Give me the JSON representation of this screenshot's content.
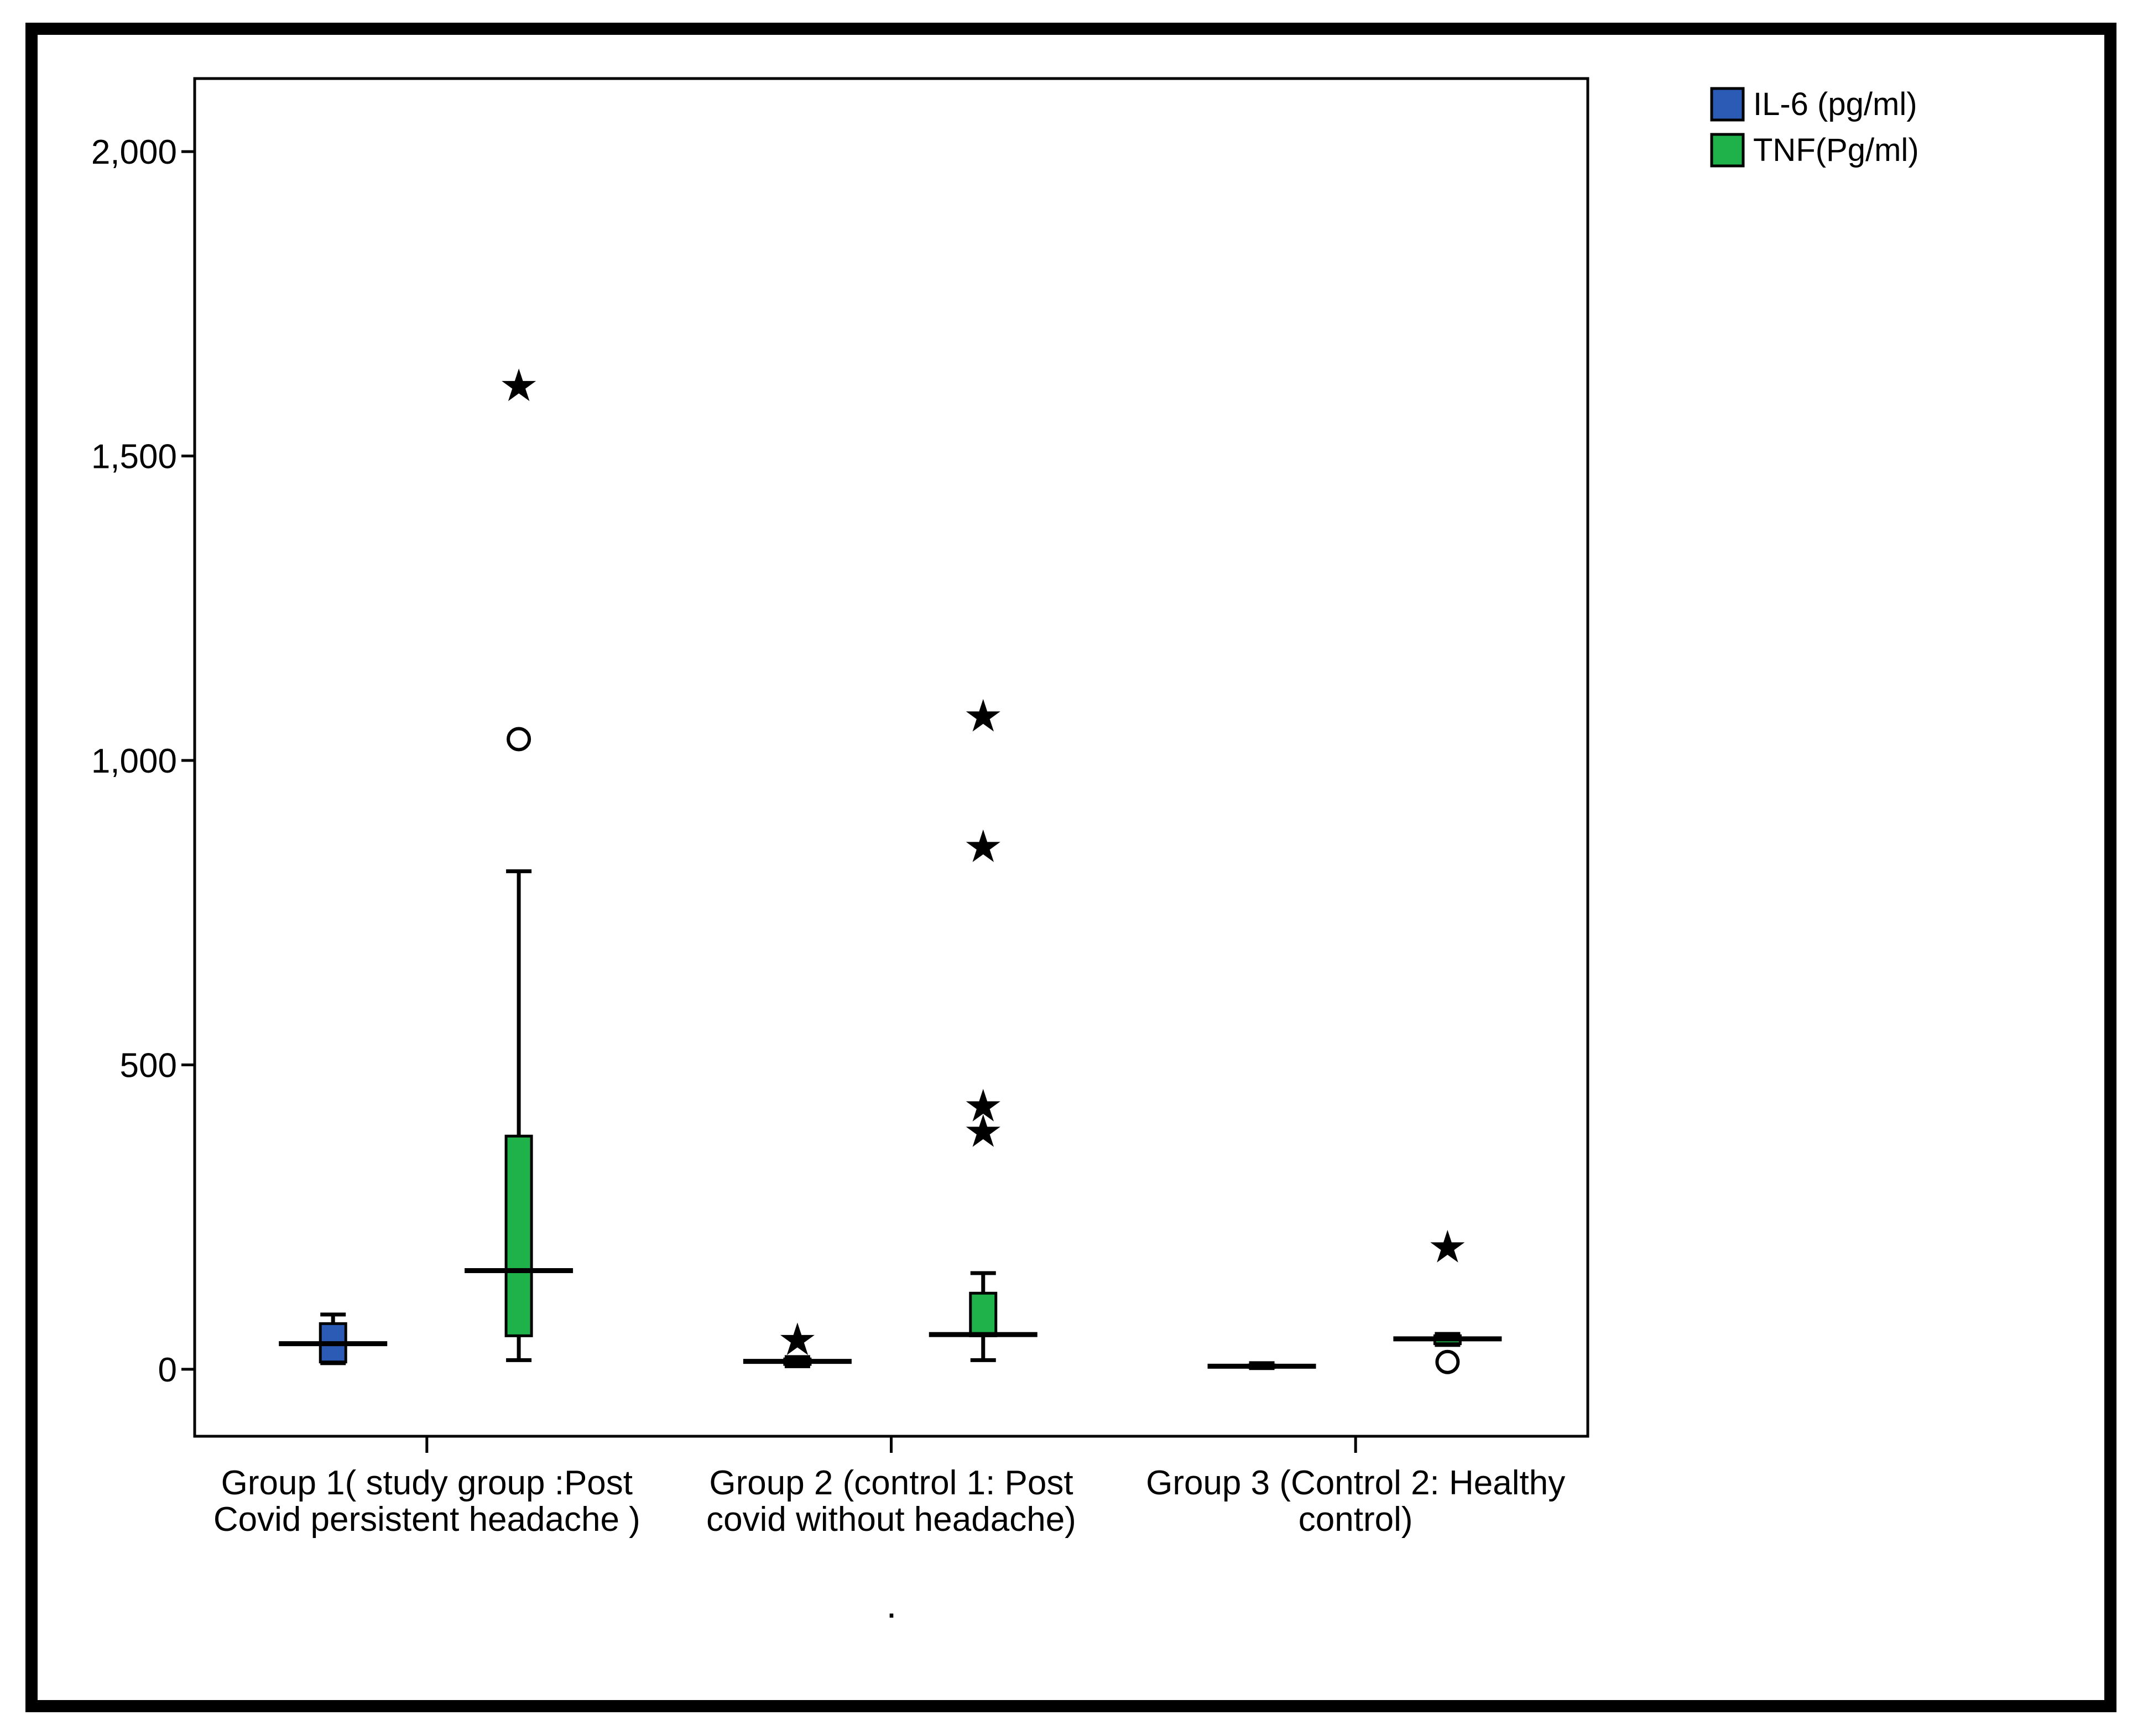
{
  "chart_data": {
    "type": "boxplot",
    "title": "",
    "xlabel": "",
    "ylabel": "",
    "ylim": [
      -110,
      2120
    ],
    "y_ticks": [
      0,
      500,
      1000,
      1500,
      2000
    ],
    "y_tick_labels": [
      "0",
      "500",
      "1,000",
      "1,500",
      "2,000"
    ],
    "grid": false,
    "legend_position": "top-right, outside plot",
    "categories": [
      {
        "line1": "Group 1( study group :Post",
        "line2": "Covid persistent headache )"
      },
      {
        "line1": "Group 2 (control 1: Post",
        "line2": "covid without headache)"
      },
      {
        "line1": "Group 3 (Control 2: Healthy",
        "line2": "control)"
      }
    ],
    "series": [
      {
        "name": "IL-6 (pg/ml)",
        "color": "#2b5bb5",
        "boxes": [
          {
            "whisker_low": 10,
            "q1": 12,
            "median": 42,
            "q3": 75,
            "whisker_high": 90,
            "outliers": [],
            "extremes": []
          },
          {
            "whisker_low": 5,
            "q1": 8,
            "median": 13,
            "q3": 17,
            "whisker_high": 20,
            "outliers": [],
            "extremes": [
              48
            ]
          },
          {
            "whisker_low": 2,
            "q1": 3,
            "median": 5,
            "q3": 7,
            "whisker_high": 10,
            "outliers": [],
            "extremes": []
          }
        ]
      },
      {
        "name": "TNF(Pg/ml)",
        "color": "#1fb14a",
        "boxes": [
          {
            "whisker_low": 15,
            "q1": 55,
            "median": 162,
            "q3": 383,
            "whisker_high": 818,
            "outliers": [
              1035
            ],
            "extremes": [
              1615
            ]
          },
          {
            "whisker_low": 15,
            "q1": 55,
            "median": 57,
            "q3": 125,
            "whisker_high": 158,
            "outliers": [],
            "extremes": [
              390,
              432,
              858,
              1072
            ]
          },
          {
            "whisker_low": 40,
            "q1": 42,
            "median": 50,
            "q3": 55,
            "whisker_high": 58,
            "outliers": [
              12
            ],
            "extremes": [
              200
            ]
          }
        ]
      }
    ]
  },
  "footnote": "."
}
